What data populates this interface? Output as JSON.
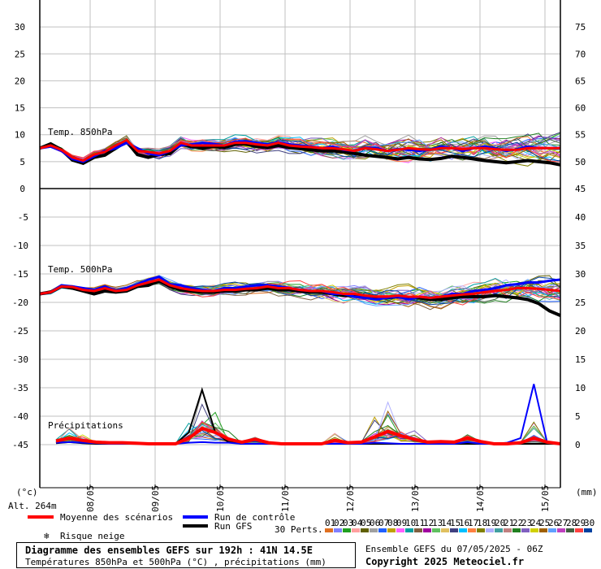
{
  "colors": {
    "mean": "#ff0000",
    "control": "#0000ff",
    "gfs": "#000000",
    "grid": "#c0c0c0",
    "axis": "#000000",
    "snow": "#00aaff",
    "members": [
      "#e07020",
      "#8080ff",
      "#20a020",
      "#ffa0a0",
      "#606000",
      "#a0a0a0",
      "#2060ff",
      "#c0a000",
      "#ff60ff",
      "#00a0a0",
      "#806040",
      "#a000a0",
      "#60c060",
      "#e0c060",
      "#404080",
      "#00c0ff",
      "#ff8040",
      "#808000",
      "#b0b0ff",
      "#40a0a0",
      "#c08080",
      "#208020",
      "#8060c0",
      "#d0d000",
      "#a06000",
      "#60a0ff",
      "#c040c0",
      "#406040",
      "#ff4040",
      "#0040a0"
    ]
  },
  "labels": {
    "panel_temp850": "Temp. 850hPa",
    "panel_temp500": "Temp. 500hPa",
    "panel_precip": "Précipitations",
    "left_unit": "(°c)",
    "right_unit": "(mm)",
    "altitude": "Alt. 264m",
    "legend_mean": "Moyenne des scénarios",
    "legend_control": "Run de contrôle",
    "legend_gfs": "Run GFS",
    "legend_snow": "Risque neige",
    "legend_perts": "30 Perts.",
    "pert_numbers": [
      "01",
      "02",
      "03",
      "04",
      "05",
      "06",
      "07",
      "08",
      "09",
      "10",
      "11",
      "12",
      "13",
      "14",
      "15",
      "16",
      "17",
      "18",
      "19",
      "20",
      "21",
      "22",
      "23",
      "24",
      "25",
      "26",
      "27",
      "28",
      "29",
      "30"
    ]
  },
  "info": {
    "title": "Diagramme des ensembles GEFS sur 192h : 41N 14.5E",
    "subtitle": "Températures 850hPa et 500hPa (°C) , précipitations (mm)",
    "run": "Ensemble GEFS du 07/05/2025 - 06Z",
    "copyright": "Copyright 2025 Meteociel.fr"
  },
  "chart_data": [
    {
      "type": "line",
      "title": "Temp. 850hPa",
      "ylabel": "°C",
      "x_labels": [
        "08/05",
        "09/05",
        "10/05",
        "11/05",
        "12/05",
        "13/05",
        "14/05",
        "15/05"
      ],
      "x_range_hours": [
        0,
        192
      ],
      "ylim": [
        0,
        35
      ],
      "ylim_right": [
        45,
        80
      ],
      "y_ticks_left": [
        "0",
        "5",
        "10",
        "15",
        "20",
        "25",
        "30"
      ],
      "y_ticks_right": [
        "45",
        "50",
        "55",
        "60",
        "65",
        "70",
        "75"
      ],
      "series": [
        {
          "name": "Moyenne des scénarios",
          "values": [
            7.5,
            8,
            7.2,
            5.8,
            5.2,
            6.3,
            6.8,
            8,
            9,
            7,
            6.8,
            6.5,
            7,
            8.5,
            8,
            8,
            8,
            8,
            8.5,
            8.5,
            8.2,
            8,
            8.5,
            8,
            7.8,
            7.7,
            7.5,
            7.5,
            7.3,
            7,
            7.5,
            7.3,
            7,
            7.2,
            7.5,
            7.3,
            7.2,
            7.5,
            7.5,
            7.3,
            7.5,
            7.5,
            7.3,
            7.2,
            7.2,
            7.5,
            7.5,
            7.5,
            7.5
          ]
        },
        {
          "name": "Run de contrôle",
          "values": [
            7.5,
            7.8,
            7,
            5.5,
            5,
            6,
            7,
            7.5,
            8.5,
            7.5,
            6.5,
            6.2,
            7,
            8,
            8.2,
            8.5,
            8.3,
            8,
            8.7,
            8.8,
            8.5,
            8.2,
            8.6,
            8.2,
            8,
            7.8,
            7.5,
            7.8,
            7.2,
            7,
            7.6,
            7.5,
            7,
            7.3,
            7.2,
            7,
            7.2,
            7.8,
            7.5,
            7,
            7.5,
            7.8,
            7.5,
            7,
            7.3,
            7.8,
            7.5,
            7.5,
            7.5
          ]
        },
        {
          "name": "Run GFS",
          "values": [
            7.5,
            8.3,
            7.2,
            5.3,
            4.7,
            5.8,
            6.2,
            7.5,
            8.8,
            6.3,
            5.8,
            6.3,
            6.5,
            8.2,
            7.8,
            7.5,
            7.8,
            7.6,
            8.2,
            8.3,
            7.8,
            7.6,
            8,
            7.6,
            7.4,
            7.2,
            7,
            7,
            6.8,
            6.5,
            6.2,
            6,
            5.8,
            5.5,
            5.8,
            5.5,
            5.4,
            5.6,
            6,
            5.8,
            5.5,
            5.2,
            5,
            4.8,
            5,
            5.2,
            5,
            4.8,
            4.4
          ]
        }
      ]
    },
    {
      "type": "line",
      "title": "Temp. 500hPa",
      "ylabel": "°C",
      "x_labels": [
        "08/05",
        "09/05",
        "10/05",
        "11/05",
        "12/05",
        "13/05",
        "14/05",
        "15/05"
      ],
      "ylim": [
        -50,
        0
      ],
      "ylim_right": [
        0,
        45
      ],
      "y_ticks_left": [
        "0",
        "-5",
        "-10",
        "-15",
        "-20",
        "-25",
        "-30",
        "-35",
        "-40",
        "-45"
      ],
      "y_ticks_right": [
        "45",
        "40",
        "35",
        "30",
        "25",
        "20",
        "15",
        "10",
        "5",
        "0"
      ],
      "series": [
        {
          "name": "Moyenne des scénarios",
          "values": [
            -18.5,
            -18.2,
            -17.2,
            -17.3,
            -17.8,
            -18,
            -17.5,
            -18,
            -17.8,
            -17,
            -16.5,
            -16,
            -17,
            -17.5,
            -17.8,
            -18,
            -18,
            -17.8,
            -17.8,
            -17.6,
            -17.5,
            -17.2,
            -17.5,
            -17.5,
            -17.8,
            -18,
            -18,
            -18.2,
            -18.5,
            -18.5,
            -18.8,
            -19,
            -19,
            -18.8,
            -19,
            -19,
            -19.2,
            -19,
            -18.8,
            -18.6,
            -18.5,
            -18.2,
            -18,
            -17.8,
            -17.5,
            -17.5,
            -17.6,
            -17.8,
            -18
          ]
        },
        {
          "name": "Run de contrôle",
          "values": [
            -18.5,
            -18.2,
            -17,
            -17.2,
            -17.5,
            -17.8,
            -17.2,
            -18,
            -17.5,
            -16.8,
            -16,
            -15.5,
            -16.8,
            -17,
            -17.5,
            -17.8,
            -18,
            -17.5,
            -17.5,
            -17.2,
            -17,
            -17,
            -17.2,
            -17.5,
            -17.8,
            -18,
            -18,
            -18.5,
            -18.5,
            -19,
            -19.2,
            -19.5,
            -19.2,
            -19,
            -19.5,
            -19,
            -19.2,
            -19,
            -18.5,
            -18.5,
            -18,
            -17.8,
            -17.5,
            -17,
            -16.8,
            -16.5,
            -16.5,
            -16.2,
            -16
          ]
        },
        {
          "name": "Run GFS",
          "values": [
            -18.5,
            -18.2,
            -17.2,
            -17.5,
            -18,
            -18.5,
            -18,
            -18.2,
            -18,
            -17.2,
            -17,
            -16.2,
            -17.2,
            -17.8,
            -18,
            -18.2,
            -18.2,
            -18,
            -18,
            -17.8,
            -17.8,
            -17.5,
            -17.8,
            -17.8,
            -18,
            -18.2,
            -18.2,
            -18.5,
            -18.8,
            -18.8,
            -19,
            -19.2,
            -19.2,
            -19,
            -19.2,
            -19.2,
            -19.5,
            -19.5,
            -19.2,
            -19,
            -19,
            -19,
            -18.8,
            -19,
            -19.2,
            -19.5,
            -20.2,
            -21.5,
            -22.3
          ]
        }
      ]
    },
    {
      "type": "line",
      "title": "Précipitations",
      "ylabel": "mm",
      "x_labels": [
        "08/05",
        "09/05",
        "10/05",
        "11/05",
        "12/05",
        "13/05",
        "14/05",
        "15/05"
      ],
      "ylim": [
        0,
        15
      ],
      "series": [
        {
          "name": "Moyenne des scénarios",
          "values": [
            0.5,
            1,
            0.6,
            0.3,
            0.2,
            0.2,
            0.1,
            0,
            0,
            0,
            1,
            2.7,
            2,
            0.8,
            0.3,
            0.8,
            0.2,
            0,
            0,
            0,
            0,
            0.6,
            0.2,
            0.3,
            1.2,
            2.2,
            1.4,
            0.8,
            0.3,
            0.4,
            0.3,
            1,
            0.4,
            0,
            0,
            0.2,
            1,
            0.3,
            0
          ]
        },
        {
          "name": "Run de contrôle",
          "values": [
            0.2,
            0.3,
            0.2,
            0.1,
            0,
            0,
            0,
            0,
            0,
            0,
            0.2,
            0.3,
            0.2,
            0.2,
            0,
            0,
            0,
            0,
            0,
            0,
            0,
            0,
            0,
            0,
            0.2,
            0.1,
            0,
            0,
            0,
            0,
            0,
            0.3,
            0,
            0,
            0.2,
            1,
            10.5,
            0.2,
            0
          ]
        },
        {
          "name": "Run GFS",
          "values": [
            0.1,
            0.3,
            0.1,
            0,
            0,
            0,
            0,
            0,
            0,
            0,
            2,
            9.5,
            2,
            0.3,
            0,
            0,
            0,
            0,
            0,
            0,
            0,
            0,
            0,
            0,
            0,
            0,
            0,
            0,
            0,
            0,
            0,
            0,
            0,
            0,
            0,
            0,
            0,
            0,
            0
          ]
        }
      ]
    }
  ]
}
